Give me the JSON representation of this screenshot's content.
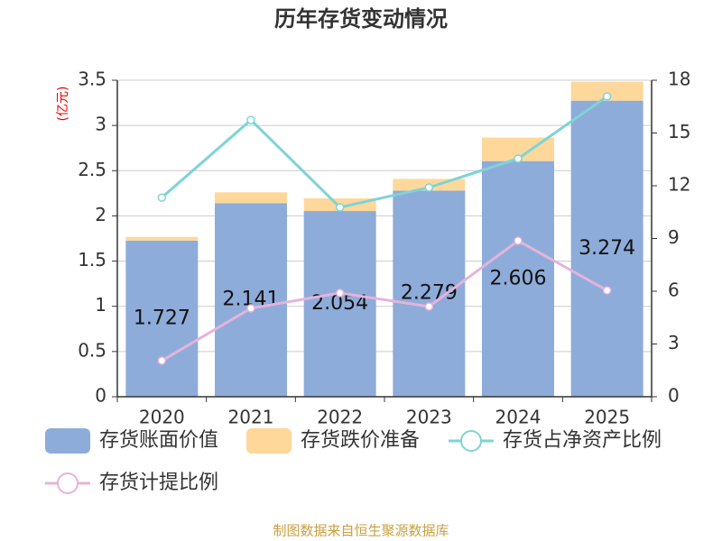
{
  "chart_data": {
    "type": "bar",
    "title": "历年存货变动情况",
    "y_label": "(亿元)",
    "categories": [
      "2020",
      "2021",
      "2022",
      "2023",
      "2024",
      "2025"
    ],
    "series": [
      {
        "name": "存货账面价值",
        "color": "#8eacd9",
        "type": "bar",
        "values": [
          1.727,
          2.141,
          2.054,
          2.279,
          2.606,
          3.274
        ],
        "show_labels": true
      },
      {
        "name": "存货跌价准备",
        "color": "#fdd89a",
        "type": "bar",
        "values": [
          0.04,
          0.12,
          0.14,
          0.13,
          0.26,
          0.21
        ]
      },
      {
        "name": "存货占净资产比例",
        "color": "#7fd3d6",
        "type": "line",
        "axis": "y2",
        "values": [
          11.33,
          15.74,
          10.77,
          11.9,
          13.54,
          17.08
        ]
      },
      {
        "name": "存货计提比例",
        "color": "#e5b3dc",
        "type": "line",
        "axis": "y2",
        "values": [
          2.05,
          5.03,
          5.9,
          5.13,
          8.87,
          6.05
        ]
      }
    ],
    "ylim": [
      0,
      3.5
    ],
    "yticks": [
      0,
      0.5,
      1,
      1.5,
      2,
      2.5,
      3,
      3.5
    ],
    "y2lim": [
      0,
      18
    ],
    "y2ticks": [
      0,
      3,
      6,
      9,
      12,
      15,
      18
    ],
    "grid": true,
    "source": "制图数据来自恒生聚源数据库"
  }
}
